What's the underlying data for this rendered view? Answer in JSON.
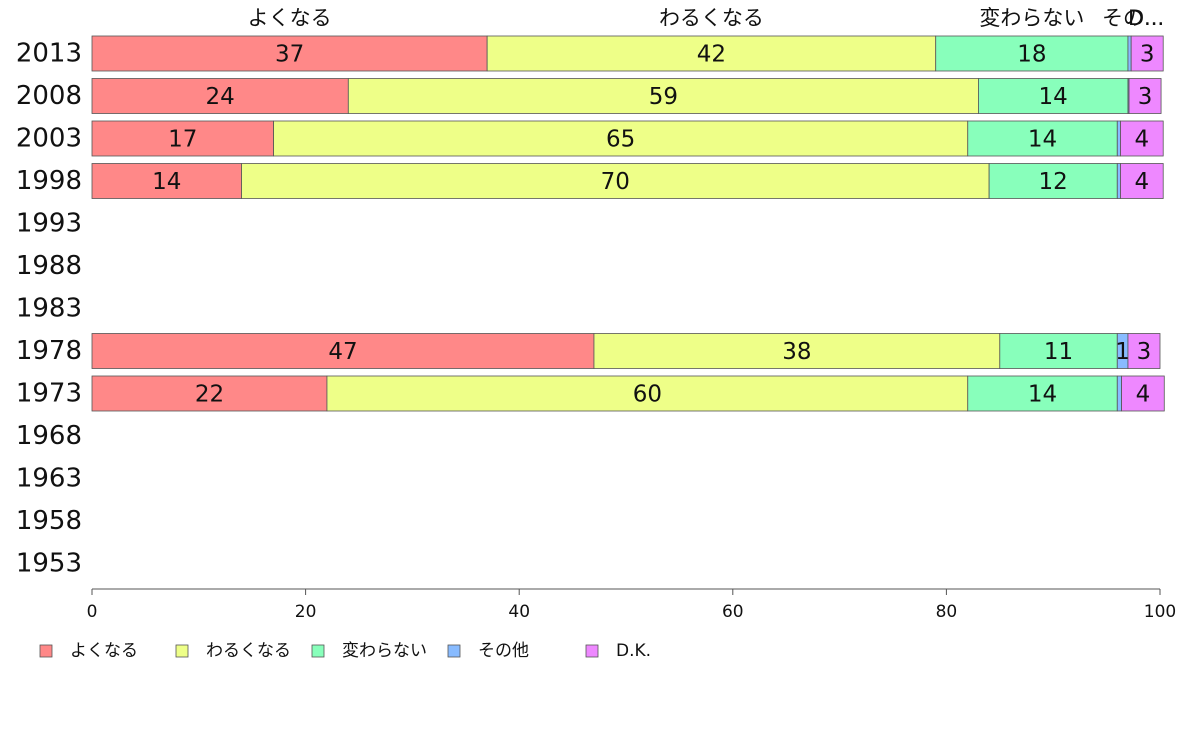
{
  "chart_data": {
    "type": "bar",
    "orientation": "horizontal",
    "stacked": true,
    "title": "",
    "xlabel": "",
    "ylabel": "",
    "xlim": [
      0,
      100
    ],
    "x_ticks": [
      0,
      20,
      40,
      60,
      80,
      100
    ],
    "grid": false,
    "legend_position": "bottom-left",
    "categories": [
      "2013",
      "2008",
      "2003",
      "1998",
      "1993",
      "1988",
      "1983",
      "1978",
      "1973",
      "1968",
      "1963",
      "1958",
      "1953"
    ],
    "top_labels": [
      "よくなる",
      "わるくなる",
      "変わらない",
      "その...",
      "D..."
    ],
    "series": [
      {
        "name": "よくなる",
        "color": "#ff8888",
        "values": [
          37,
          24,
          17,
          14,
          null,
          null,
          null,
          47,
          22,
          null,
          null,
          null,
          null
        ]
      },
      {
        "name": "わるくなる",
        "color": "#eeff88",
        "values": [
          42,
          59,
          65,
          70,
          null,
          null,
          null,
          38,
          60,
          null,
          null,
          null,
          null
        ]
      },
      {
        "name": "変わらない",
        "color": "#88ffbb",
        "values": [
          18,
          14,
          14,
          12,
          null,
          null,
          null,
          11,
          14,
          null,
          null,
          null,
          null
        ]
      },
      {
        "name": "その他",
        "color": "#88bbff",
        "values": [
          0.3,
          0.1,
          0.3,
          0.3,
          null,
          null,
          null,
          1,
          0.4,
          null,
          null,
          null,
          null
        ]
      },
      {
        "name": "D.K.",
        "color": "#ee88ff",
        "values": [
          3,
          3,
          4,
          4,
          null,
          null,
          null,
          3,
          4,
          null,
          null,
          null,
          null
        ]
      }
    ],
    "data_labels": [
      [
        "37",
        "24",
        "17",
        "14",
        "",
        "",
        "",
        "47",
        "22",
        "",
        "",
        "",
        ""
      ],
      [
        "42",
        "59",
        "65",
        "70",
        "",
        "",
        "",
        "38",
        "60",
        "",
        "",
        "",
        ""
      ],
      [
        "18",
        "14",
        "14",
        "12",
        "",
        "",
        "",
        "11",
        "14",
        "",
        "",
        "",
        ""
      ],
      [
        "",
        "",
        "",
        "",
        "",
        "",
        "",
        "1",
        "",
        "",
        "",
        "",
        ""
      ],
      [
        "3",
        "3",
        "4",
        "4",
        "",
        "",
        "",
        "3",
        "4",
        "",
        "",
        "",
        ""
      ]
    ]
  }
}
